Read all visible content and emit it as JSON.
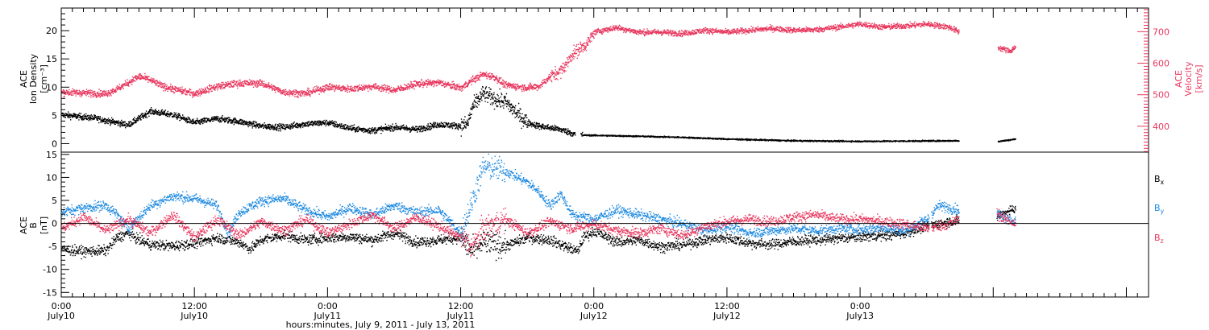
{
  "chart_data": [
    {
      "type": "scatter",
      "panel": "top",
      "left_label": [
        "ACE",
        "Ion Density",
        "[cm⁻³]"
      ],
      "right_label": [
        "ACE",
        "Velocity",
        "[km/s]"
      ],
      "left_ylim": [
        -1.5,
        24
      ],
      "left_yticks": [
        0,
        5,
        10,
        15,
        20
      ],
      "right_ylim": [
        318,
        775
      ],
      "right_yticks": [
        400,
        500,
        600,
        700
      ],
      "series": [
        {
          "axis": "left",
          "color": "#000000",
          "keyframes": [
            [
              0,
              5.2
            ],
            [
              3,
              4.6
            ],
            [
              6,
              3.4
            ],
            [
              8,
              5.8
            ],
            [
              10,
              5.2
            ],
            [
              12,
              3.8
            ],
            [
              14,
              4.5
            ],
            [
              16,
              4.0
            ],
            [
              18,
              3.2
            ],
            [
              20,
              3.0
            ],
            [
              22,
              3.6
            ],
            [
              24,
              3.8
            ],
            [
              26,
              2.8
            ],
            [
              28,
              2.4
            ],
            [
              30,
              3.0
            ],
            [
              32,
              2.6
            ],
            [
              34,
              3.5
            ],
            [
              36,
              3.2
            ],
            [
              36.6,
              3.6
            ],
            [
              37,
              6.5
            ],
            [
              38,
              9.0
            ],
            [
              39,
              8.0
            ],
            [
              40,
              7.5
            ],
            [
              41,
              5.5
            ],
            [
              42,
              3.8
            ],
            [
              43,
              3.2
            ],
            [
              45,
              2.6
            ],
            [
              46.2,
              1.8
            ],
            [
              46.8,
              1.6
            ],
            [
              52,
              1.4
            ],
            [
              56,
              1.2
            ],
            [
              60,
              0.9
            ],
            [
              66,
              0.6
            ],
            [
              72,
              0.5
            ],
            [
              80,
              0.6
            ],
            [
              80.8,
              0.6
            ],
            [
              84.5,
              0.5
            ],
            [
              86,
              0.9
            ]
          ],
          "gaps": [
            [
              46.3,
              46.8
            ],
            [
              80.9,
              84.4
            ]
          ]
        },
        {
          "axis": "right",
          "color": "#e8375e",
          "keyframes": [
            [
              0,
              510
            ],
            [
              4,
              505
            ],
            [
              5,
              520
            ],
            [
              7,
              560
            ],
            [
              8,
              548
            ],
            [
              9,
              530
            ],
            [
              10,
              520
            ],
            [
              12,
              505
            ],
            [
              14,
              528
            ],
            [
              16,
              538
            ],
            [
              18,
              538
            ],
            [
              20,
              510
            ],
            [
              22,
              506
            ],
            [
              24,
              526
            ],
            [
              26,
              520
            ],
            [
              28,
              528
            ],
            [
              30,
              516
            ],
            [
              32,
              536
            ],
            [
              34,
              540
            ],
            [
              36,
              523
            ],
            [
              37,
              548
            ],
            [
              38,
              566
            ],
            [
              39,
              558
            ],
            [
              40,
              532
            ],
            [
              42,
              524
            ],
            [
              43,
              528
            ],
            [
              44,
              558
            ],
            [
              45,
              578
            ],
            [
              45.5,
              600
            ],
            [
              46,
              630
            ],
            [
              47.4,
              665
            ],
            [
              48,
              700
            ],
            [
              50,
              715
            ],
            [
              52,
              700
            ],
            [
              54,
              700
            ],
            [
              56,
              696
            ],
            [
              58,
              706
            ],
            [
              60,
              700
            ],
            [
              62,
              706
            ],
            [
              64,
              712
            ],
            [
              66,
              706
            ],
            [
              68,
              708
            ],
            [
              70,
              716
            ],
            [
              72,
              726
            ],
            [
              74,
              716
            ],
            [
              76,
              720
            ],
            [
              78,
              726
            ],
            [
              80,
              716
            ],
            [
              80.8,
              702
            ],
            [
              84.5,
              650
            ],
            [
              85.5,
              640
            ],
            [
              86,
              655
            ]
          ],
          "gaps": [
            [
              80.9,
              84.4
            ]
          ]
        }
      ]
    },
    {
      "type": "scatter",
      "panel": "bottom",
      "left_label": [
        "ACE",
        "B",
        "[nT]"
      ],
      "ylim": [
        -16,
        15.5
      ],
      "yticks": [
        -15,
        -10,
        -5,
        0,
        5,
        10,
        15
      ],
      "zero_line": true,
      "series": [
        {
          "name": "Bx",
          "color": "#000000",
          "keyframes": [
            [
              0,
              -5.5
            ],
            [
              2,
              -6.0
            ],
            [
              4,
              -5.8
            ],
            [
              5,
              -3.0
            ],
            [
              6,
              -2.0
            ],
            [
              7,
              -3.5
            ],
            [
              8,
              -4.5
            ],
            [
              10,
              -4.8
            ],
            [
              12,
              -4.2
            ],
            [
              14,
              -3.0
            ],
            [
              16,
              -4.0
            ],
            [
              17,
              -5.5
            ],
            [
              18,
              -3.5
            ],
            [
              20,
              -2.5
            ],
            [
              22,
              -3.5
            ],
            [
              24,
              -3.0
            ],
            [
              26,
              -2.8
            ],
            [
              28,
              -3.5
            ],
            [
              30,
              -2.0
            ],
            [
              32,
              -4.0
            ],
            [
              34,
              -3.5
            ],
            [
              36,
              -3.0
            ],
            [
              37,
              -6.0
            ],
            [
              38,
              -4.0
            ],
            [
              40,
              -4.8
            ],
            [
              42,
              -3.0
            ],
            [
              44,
              -3.5
            ],
            [
              45,
              -4.5
            ],
            [
              46,
              -5.5
            ],
            [
              46.5,
              -6.0
            ],
            [
              47,
              -3.0
            ],
            [
              48,
              -1.5
            ],
            [
              50,
              -4.0
            ],
            [
              52,
              -3.5
            ],
            [
              54,
              -5.0
            ],
            [
              56,
              -4.5
            ],
            [
              58,
              -3.5
            ],
            [
              60,
              -3.0
            ],
            [
              62,
              -4.2
            ],
            [
              64,
              -4.5
            ],
            [
              66,
              -3.8
            ],
            [
              68,
              -3.5
            ],
            [
              70,
              -3.2
            ],
            [
              72,
              -2.8
            ],
            [
              74,
              -2.5
            ],
            [
              76,
              -2.0
            ],
            [
              78,
              -0.5
            ],
            [
              80,
              0.5
            ],
            [
              82,
              1.0
            ],
            [
              84,
              1.0
            ],
            [
              85,
              2.5
            ],
            [
              86,
              3.5
            ]
          ],
          "gaps": [
            [
              78.2,
              78.4
            ],
            [
              80.9,
              84.3
            ]
          ]
        },
        {
          "name": "By",
          "color": "#1f8ae0",
          "keyframes": [
            [
              0,
              2.5
            ],
            [
              2,
              3.5
            ],
            [
              4,
              4.0
            ],
            [
              5,
              2.0
            ],
            [
              6,
              -1.0
            ],
            [
              8,
              4.0
            ],
            [
              10,
              6.0
            ],
            [
              12,
              5.5
            ],
            [
              14,
              4.0
            ],
            [
              15,
              -2.0
            ],
            [
              16,
              2.5
            ],
            [
              18,
              5.0
            ],
            [
              20,
              5.5
            ],
            [
              22,
              3.0
            ],
            [
              24,
              1.5
            ],
            [
              26,
              3.5
            ],
            [
              28,
              2.0
            ],
            [
              30,
              4.0
            ],
            [
              32,
              2.5
            ],
            [
              34,
              3.0
            ],
            [
              36,
              -2.0
            ],
            [
              37,
              5.0
            ],
            [
              38,
              12.5
            ],
            [
              40,
              11.5
            ],
            [
              42,
              9.0
            ],
            [
              43,
              7.0
            ],
            [
              44,
              4.0
            ],
            [
              45,
              6.5
            ],
            [
              46,
              2.0
            ],
            [
              48,
              1.0
            ],
            [
              50,
              3.0
            ],
            [
              52,
              2.0
            ],
            [
              54,
              1.0
            ],
            [
              56,
              0.0
            ],
            [
              58,
              -1.5
            ],
            [
              60,
              -0.5
            ],
            [
              62,
              -2.0
            ],
            [
              64,
              -1.5
            ],
            [
              66,
              -1.0
            ],
            [
              68,
              -1.5
            ],
            [
              70,
              -1.0
            ],
            [
              72,
              -1.2
            ],
            [
              74,
              -0.8
            ],
            [
              76,
              -1.5
            ],
            [
              78,
              1.0
            ],
            [
              79,
              4.0
            ],
            [
              80,
              3.5
            ],
            [
              82,
              2.5
            ],
            [
              84,
              2.5
            ],
            [
              85,
              1.5
            ],
            [
              86,
              0.5
            ]
          ],
          "gaps": [
            [
              78.2,
              78.4
            ],
            [
              80.9,
              84.3
            ]
          ]
        },
        {
          "name": "Bz",
          "color": "#e8375e",
          "keyframes": [
            [
              0,
              -1.0
            ],
            [
              2,
              1.5
            ],
            [
              4,
              -1.5
            ],
            [
              6,
              1.0
            ],
            [
              8,
              -2.0
            ],
            [
              10,
              2.0
            ],
            [
              12,
              -3.0
            ],
            [
              14,
              1.0
            ],
            [
              16,
              -2.5
            ],
            [
              18,
              0.5
            ],
            [
              20,
              -1.5
            ],
            [
              22,
              1.0
            ],
            [
              24,
              -2.0
            ],
            [
              26,
              0.0
            ],
            [
              28,
              2.0
            ],
            [
              30,
              -1.0
            ],
            [
              32,
              1.5
            ],
            [
              34,
              -0.5
            ],
            [
              36,
              -3.0
            ],
            [
              37,
              -5.0
            ],
            [
              38,
              -1.0
            ],
            [
              40,
              1.0
            ],
            [
              42,
              -2.0
            ],
            [
              44,
              0.5
            ],
            [
              46,
              -1.0
            ],
            [
              48,
              0.0
            ],
            [
              50,
              -1.5
            ],
            [
              52,
              -2.0
            ],
            [
              54,
              -1.0
            ],
            [
              56,
              -2.5
            ],
            [
              58,
              -0.5
            ],
            [
              60,
              0.5
            ],
            [
              62,
              1.0
            ],
            [
              64,
              0.5
            ],
            [
              66,
              1.5
            ],
            [
              68,
              2.0
            ],
            [
              70,
              1.0
            ],
            [
              72,
              1.0
            ],
            [
              74,
              0.5
            ],
            [
              76,
              0.0
            ],
            [
              78,
              -1.0
            ],
            [
              80,
              0.0
            ],
            [
              82,
              2.5
            ],
            [
              84,
              3.0
            ],
            [
              85,
              1.0
            ],
            [
              86,
              0.0
            ]
          ],
          "gaps": [
            [
              78.2,
              78.4
            ],
            [
              80.9,
              84.3
            ]
          ]
        }
      ]
    }
  ],
  "legend": {
    "bx": {
      "letter": "B",
      "sub": "x",
      "color": "#000000"
    },
    "by": {
      "letter": "B",
      "sub": "y",
      "color": "#1f8ae0"
    },
    "bz": {
      "letter": "B",
      "sub": "z",
      "color": "#e8375e"
    }
  },
  "x_axis": {
    "xlim_hours": [
      0,
      98
    ],
    "major_ticks": [
      {
        "hour": 0,
        "time": "0:00",
        "date": "July10"
      },
      {
        "hour": 12,
        "time": "12:00",
        "date": "July10"
      },
      {
        "hour": 24,
        "time": "0:00",
        "date": "July11"
      },
      {
        "hour": 36,
        "time": "12:00",
        "date": "July11"
      },
      {
        "hour": 48,
        "time": "0:00",
        "date": "July12"
      },
      {
        "hour": 60,
        "time": "12:00",
        "date": "July12"
      },
      {
        "hour": 72,
        "time": "0:00",
        "date": "July13"
      }
    ],
    "title": "hours:minutes, July  9, 2011 - July 13, 2011"
  },
  "colors": {
    "axis": "#000000",
    "velocity_axis": "#e8375e",
    "density": "#000000",
    "velocity": "#e8375e",
    "bx": "#000000",
    "by": "#1f8ae0",
    "bz": "#e8375e"
  }
}
